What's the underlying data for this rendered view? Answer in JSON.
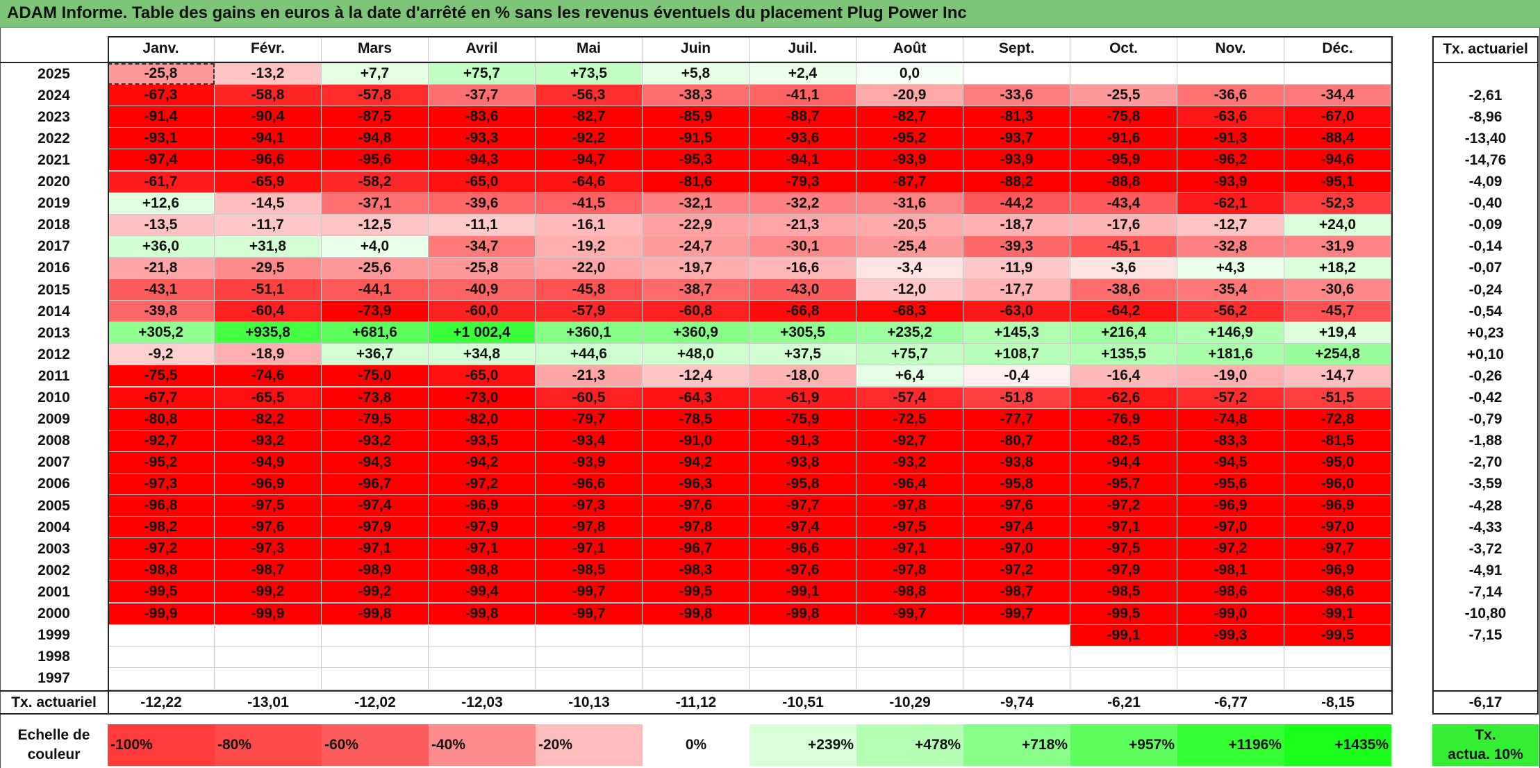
{
  "title": "ADAM Informe. Table des gains en euros à la date d'arrêté en % sans les revenus éventuels du placement Plug Power Inc",
  "colors": {
    "title_bg": "#7cc576",
    "neg_strong": "#ff0000",
    "neg_light": "#ffd0d0",
    "pos_light": "#f0fff0",
    "pos_strong": "#2bff2b",
    "tx_legend_bg": "#33ee33"
  },
  "chart_data": {
    "type": "heatmap",
    "title": "ADAM Informe. Table des gains en euros à la date d'arrêté en % sans les revenus éventuels du placement Plug Power Inc",
    "columns": [
      "Janv.",
      "Févr.",
      "Mars",
      "Avril",
      "Mai",
      "Juin",
      "Juil.",
      "Août",
      "Sept.",
      "Oct.",
      "Nov.",
      "Déc."
    ],
    "tx_header": "Tx. actuariel",
    "rows": [
      {
        "year": "2025",
        "values": [
          "-25,8",
          "-13,2",
          "+7,7",
          "+75,7",
          "+73,5",
          "+5,8",
          "+2,4",
          "0,0",
          "",
          "",
          "",
          ""
        ],
        "tx": ""
      },
      {
        "year": "2024",
        "values": [
          "-67,3",
          "-58,8",
          "-57,8",
          "-37,7",
          "-56,3",
          "-38,3",
          "-41,1",
          "-20,9",
          "-33,6",
          "-25,5",
          "-36,6",
          "-34,4"
        ],
        "tx": "-2,61"
      },
      {
        "year": "2023",
        "values": [
          "-91,4",
          "-90,4",
          "-87,5",
          "-83,6",
          "-82,7",
          "-85,9",
          "-88,7",
          "-82,7",
          "-81,3",
          "-75,8",
          "-63,6",
          "-67,0"
        ],
        "tx": "-8,96"
      },
      {
        "year": "2022",
        "values": [
          "-93,1",
          "-94,1",
          "-94,8",
          "-93,3",
          "-92,2",
          "-91,5",
          "-93,6",
          "-95,2",
          "-93,7",
          "-91,6",
          "-91,3",
          "-88,4"
        ],
        "tx": "-13,40"
      },
      {
        "year": "2021",
        "values": [
          "-97,4",
          "-96,6",
          "-95,6",
          "-94,3",
          "-94,7",
          "-95,3",
          "-94,1",
          "-93,9",
          "-93,9",
          "-95,9",
          "-96,2",
          "-94,6"
        ],
        "tx": "-14,76"
      },
      {
        "year": "2020",
        "values": [
          "-61,7",
          "-65,9",
          "-58,2",
          "-65,0",
          "-64,6",
          "-81,6",
          "-79,3",
          "-87,7",
          "-88,2",
          "-88,8",
          "-93,9",
          "-95,1"
        ],
        "tx": "-4,09"
      },
      {
        "year": "2019",
        "values": [
          "+12,6",
          "-14,5",
          "-37,1",
          "-39,6",
          "-41,5",
          "-32,1",
          "-32,2",
          "-31,6",
          "-44,2",
          "-43,4",
          "-62,1",
          "-52,3"
        ],
        "tx": "-0,40"
      },
      {
        "year": "2018",
        "values": [
          "-13,5",
          "-11,7",
          "-12,5",
          "-11,1",
          "-16,1",
          "-22,9",
          "-21,3",
          "-20,5",
          "-18,7",
          "-17,6",
          "-12,7",
          "+24,0"
        ],
        "tx": "-0,09"
      },
      {
        "year": "2017",
        "values": [
          "+36,0",
          "+31,8",
          "+4,0",
          "-34,7",
          "-19,2",
          "-24,7",
          "-30,1",
          "-25,4",
          "-39,3",
          "-45,1",
          "-32,8",
          "-31,9"
        ],
        "tx": "-0,14"
      },
      {
        "year": "2016",
        "values": [
          "-21,8",
          "-29,5",
          "-25,6",
          "-25,8",
          "-22,0",
          "-19,7",
          "-16,6",
          "-3,4",
          "-11,9",
          "-3,6",
          "+4,3",
          "+18,2"
        ],
        "tx": "-0,07"
      },
      {
        "year": "2015",
        "values": [
          "-43,1",
          "-51,1",
          "-44,1",
          "-40,9",
          "-45,8",
          "-38,7",
          "-43,0",
          "-12,0",
          "-17,7",
          "-38,6",
          "-35,4",
          "-30,6"
        ],
        "tx": "-0,24"
      },
      {
        "year": "2014",
        "values": [
          "-39,8",
          "-60,4",
          "-73,9",
          "-60,0",
          "-57,9",
          "-60,8",
          "-66,8",
          "-68,3",
          "-63,0",
          "-64,2",
          "-56,2",
          "-45,7"
        ],
        "tx": "-0,54"
      },
      {
        "year": "2013",
        "values": [
          "+305,2",
          "+935,8",
          "+681,6",
          "+1 002,4",
          "+360,1",
          "+360,9",
          "+305,5",
          "+235,2",
          "+145,3",
          "+216,4",
          "+146,9",
          "+19,4"
        ],
        "tx": "+0,23"
      },
      {
        "year": "2012",
        "values": [
          "-9,2",
          "-18,9",
          "+36,7",
          "+34,8",
          "+44,6",
          "+48,0",
          "+37,5",
          "+75,7",
          "+108,7",
          "+135,5",
          "+181,6",
          "+254,8"
        ],
        "tx": "+0,10"
      },
      {
        "year": "2011",
        "values": [
          "-75,5",
          "-74,6",
          "-75,0",
          "-65,0",
          "-21,3",
          "-12,4",
          "-18,0",
          "+6,4",
          "-0,4",
          "-16,4",
          "-19,0",
          "-14,7"
        ],
        "tx": "-0,26"
      },
      {
        "year": "2010",
        "values": [
          "-67,7",
          "-65,5",
          "-73,8",
          "-73,0",
          "-60,5",
          "-64,3",
          "-61,9",
          "-57,4",
          "-51,8",
          "-62,6",
          "-57,2",
          "-51,5"
        ],
        "tx": "-0,42"
      },
      {
        "year": "2009",
        "values": [
          "-80,8",
          "-82,2",
          "-79,5",
          "-82,0",
          "-79,7",
          "-78,5",
          "-75,9",
          "-72,5",
          "-77,7",
          "-76,9",
          "-74,8",
          "-72,8"
        ],
        "tx": "-0,79"
      },
      {
        "year": "2008",
        "values": [
          "-92,7",
          "-93,2",
          "-93,2",
          "-93,5",
          "-93,4",
          "-91,0",
          "-91,3",
          "-92,7",
          "-80,7",
          "-82,5",
          "-83,3",
          "-81,5"
        ],
        "tx": "-1,88"
      },
      {
        "year": "2007",
        "values": [
          "-95,2",
          "-94,9",
          "-94,3",
          "-94,2",
          "-93,9",
          "-94,2",
          "-93,8",
          "-93,2",
          "-93,8",
          "-94,4",
          "-94,5",
          "-95,0"
        ],
        "tx": "-2,70"
      },
      {
        "year": "2006",
        "values": [
          "-97,3",
          "-96,9",
          "-96,7",
          "-97,2",
          "-96,6",
          "-96,3",
          "-95,8",
          "-96,4",
          "-95,8",
          "-95,7",
          "-95,6",
          "-96,0"
        ],
        "tx": "-3,59"
      },
      {
        "year": "2005",
        "values": [
          "-96,8",
          "-97,5",
          "-97,4",
          "-96,9",
          "-97,3",
          "-97,6",
          "-97,7",
          "-97,8",
          "-97,6",
          "-97,2",
          "-96,9",
          "-96,9"
        ],
        "tx": "-4,28"
      },
      {
        "year": "2004",
        "values": [
          "-98,2",
          "-97,6",
          "-97,9",
          "-97,9",
          "-97,8",
          "-97,8",
          "-97,4",
          "-97,5",
          "-97,4",
          "-97,1",
          "-97,0",
          "-97,0"
        ],
        "tx": "-4,33"
      },
      {
        "year": "2003",
        "values": [
          "-97,2",
          "-97,3",
          "-97,1",
          "-97,1",
          "-97,1",
          "-96,7",
          "-96,6",
          "-97,1",
          "-97,0",
          "-97,5",
          "-97,2",
          "-97,7"
        ],
        "tx": "-3,72"
      },
      {
        "year": "2002",
        "values": [
          "-98,8",
          "-98,7",
          "-98,9",
          "-98,8",
          "-98,5",
          "-98,3",
          "-97,6",
          "-97,8",
          "-97,2",
          "-97,9",
          "-98,1",
          "-96,9"
        ],
        "tx": "-4,91"
      },
      {
        "year": "2001",
        "values": [
          "-99,5",
          "-99,2",
          "-99,2",
          "-99,4",
          "-99,7",
          "-99,5",
          "-99,1",
          "-98,8",
          "-98,7",
          "-98,5",
          "-98,6",
          "-98,6"
        ],
        "tx": "-7,14"
      },
      {
        "year": "2000",
        "values": [
          "-99,9",
          "-99,9",
          "-99,8",
          "-99,8",
          "-99,7",
          "-99,8",
          "-99,8",
          "-99,7",
          "-99,7",
          "-99,5",
          "-99,0",
          "-99,1"
        ],
        "tx": "-10,80"
      },
      {
        "year": "1999",
        "values": [
          "",
          "",
          "",
          "",
          "",
          "",
          "",
          "",
          "",
          "-99,1",
          "-99,3",
          "-99,5"
        ],
        "tx": "-7,15"
      },
      {
        "year": "1998",
        "values": [
          "",
          "",
          "",
          "",
          "",
          "",
          "",
          "",
          "",
          "",
          "",
          ""
        ],
        "tx": ""
      },
      {
        "year": "1997",
        "values": [
          "",
          "",
          "",
          "",
          "",
          "",
          "",
          "",
          "",
          "",
          "",
          ""
        ],
        "tx": ""
      }
    ],
    "footer": {
      "label": "Tx. actuariel",
      "values": [
        "-12,22",
        "-13,01",
        "-12,02",
        "-12,03",
        "-10,13",
        "-11,12",
        "-10,51",
        "-10,29",
        "-9,74",
        "-6,21",
        "-6,77",
        "-8,15"
      ],
      "tx": "-6,17"
    },
    "legend": {
      "label_line1": "Echelle de",
      "label_line2": "couleur",
      "items": [
        {
          "text": "-100%",
          "align": "left",
          "color": "#ff3b3b"
        },
        {
          "text": "-80%",
          "align": "left",
          "color": "#ff4a4a"
        },
        {
          "text": "-60%",
          "align": "left",
          "color": "#ff5c5c"
        },
        {
          "text": "-40%",
          "align": "left",
          "color": "#ff8c8c"
        },
        {
          "text": "-20%",
          "align": "left",
          "color": "#ffbcbc"
        },
        {
          "text": "0%",
          "align": "center",
          "color": "#ffffff"
        },
        {
          "text": "+239%",
          "align": "right",
          "color": "#d8ffd8"
        },
        {
          "text": "+478%",
          "align": "right",
          "color": "#b3ffb3"
        },
        {
          "text": "+718%",
          "align": "right",
          "color": "#88ff88"
        },
        {
          "text": "+957%",
          "align": "right",
          "color": "#5cff5c"
        },
        {
          "text": "+1196%",
          "align": "right",
          "color": "#33ff33"
        },
        {
          "text": "+1435%",
          "align": "right",
          "color": "#1aff1a"
        }
      ],
      "tx_line1": "Tx.",
      "tx_line2": "actua. 10%"
    }
  }
}
